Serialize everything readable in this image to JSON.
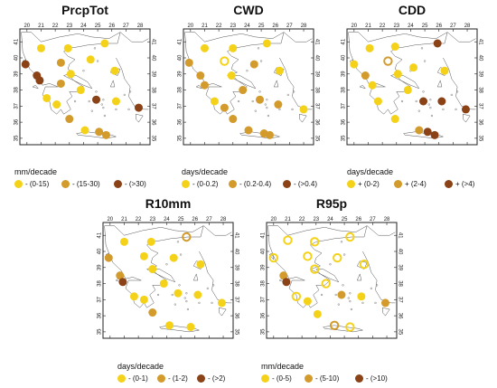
{
  "colors": {
    "yellow": "#f5d21a",
    "orange": "#d39a2c",
    "brown": "#8a4216",
    "frame": "#222222",
    "coast": "#555555"
  },
  "lon_ticks": [
    "20",
    "21",
    "22",
    "23",
    "24",
    "25",
    "26",
    "27",
    "28"
  ],
  "lat_ticks": [
    "35",
    "36",
    "37",
    "38",
    "39",
    "40",
    "41"
  ],
  "panels": [
    {
      "title": "PrcpTot",
      "legend_title": "mm/decade",
      "legend": [
        {
          "label": "- (0-15)",
          "color": "yellow"
        },
        {
          "label": "- (15-30)",
          "color": "orange"
        },
        {
          "label": "- (>30)",
          "color": "brown"
        }
      ],
      "stations": [
        {
          "lon": 21.0,
          "lat": 40.6,
          "color": "yellow",
          "style": "filled"
        },
        {
          "lon": 22.9,
          "lat": 40.6,
          "color": "yellow",
          "style": "filled"
        },
        {
          "lon": 25.5,
          "lat": 40.9,
          "color": "yellow",
          "style": "filled"
        },
        {
          "lon": 19.9,
          "lat": 39.6,
          "color": "brown",
          "style": "filled"
        },
        {
          "lon": 22.4,
          "lat": 39.7,
          "color": "orange",
          "style": "filled"
        },
        {
          "lon": 24.5,
          "lat": 39.9,
          "color": "yellow",
          "style": "filled"
        },
        {
          "lon": 26.2,
          "lat": 39.2,
          "color": "yellow",
          "style": "filled"
        },
        {
          "lon": 20.7,
          "lat": 38.9,
          "color": "brown",
          "style": "filled"
        },
        {
          "lon": 23.1,
          "lat": 39.0,
          "color": "yellow",
          "style": "filled"
        },
        {
          "lon": 20.9,
          "lat": 38.6,
          "color": "brown",
          "style": "filled"
        },
        {
          "lon": 22.4,
          "lat": 38.4,
          "color": "orange",
          "style": "filled"
        },
        {
          "lon": 23.8,
          "lat": 38.0,
          "color": "yellow",
          "style": "filled"
        },
        {
          "lon": 21.4,
          "lat": 37.5,
          "color": "yellow",
          "style": "filled"
        },
        {
          "lon": 22.1,
          "lat": 37.1,
          "color": "yellow",
          "style": "filled"
        },
        {
          "lon": 24.9,
          "lat": 37.4,
          "color": "brown",
          "style": "filled"
        },
        {
          "lon": 26.3,
          "lat": 37.3,
          "color": "yellow",
          "style": "filled"
        },
        {
          "lon": 27.9,
          "lat": 36.9,
          "color": "brown",
          "style": "filled"
        },
        {
          "lon": 23.0,
          "lat": 36.2,
          "color": "orange",
          "style": "filled"
        },
        {
          "lon": 24.1,
          "lat": 35.5,
          "color": "yellow",
          "style": "filled"
        },
        {
          "lon": 25.1,
          "lat": 35.4,
          "color": "orange",
          "style": "filled"
        },
        {
          "lon": 25.6,
          "lat": 35.2,
          "color": "orange",
          "style": "filled"
        }
      ]
    },
    {
      "title": "CWD",
      "legend_title": "days/decade",
      "legend": [
        {
          "label": "- (0-0.2)",
          "color": "yellow"
        },
        {
          "label": "- (0.2-0.4)",
          "color": "orange"
        },
        {
          "label": "- (>0.4)",
          "color": "brown"
        }
      ],
      "stations": [
        {
          "lon": 21.0,
          "lat": 40.6,
          "color": "yellow",
          "style": "filled"
        },
        {
          "lon": 23.0,
          "lat": 40.6,
          "color": "yellow",
          "style": "filled"
        },
        {
          "lon": 25.4,
          "lat": 40.9,
          "color": "yellow",
          "style": "filled"
        },
        {
          "lon": 19.9,
          "lat": 39.7,
          "color": "orange",
          "style": "filled"
        },
        {
          "lon": 22.4,
          "lat": 39.8,
          "color": "yellow",
          "style": "ring"
        },
        {
          "lon": 24.5,
          "lat": 39.6,
          "color": "orange",
          "style": "filled"
        },
        {
          "lon": 26.3,
          "lat": 39.2,
          "color": "yellow",
          "style": "filled"
        },
        {
          "lon": 20.7,
          "lat": 38.9,
          "color": "orange",
          "style": "filled"
        },
        {
          "lon": 22.9,
          "lat": 38.9,
          "color": "yellow",
          "style": "filled"
        },
        {
          "lon": 21.0,
          "lat": 38.3,
          "color": "orange",
          "style": "filled"
        },
        {
          "lon": 23.7,
          "lat": 38.0,
          "color": "orange",
          "style": "filled"
        },
        {
          "lon": 21.7,
          "lat": 37.3,
          "color": "yellow",
          "style": "filled"
        },
        {
          "lon": 22.4,
          "lat": 36.9,
          "color": "orange",
          "style": "filled"
        },
        {
          "lon": 24.9,
          "lat": 37.4,
          "color": "orange",
          "style": "filled"
        },
        {
          "lon": 26.2,
          "lat": 37.1,
          "color": "orange",
          "style": "filled"
        },
        {
          "lon": 28.0,
          "lat": 36.8,
          "color": "yellow",
          "style": "filled"
        },
        {
          "lon": 23.0,
          "lat": 36.2,
          "color": "orange",
          "style": "filled"
        },
        {
          "lon": 24.1,
          "lat": 35.5,
          "color": "orange",
          "style": "filled"
        },
        {
          "lon": 25.2,
          "lat": 35.3,
          "color": "orange",
          "style": "filled"
        },
        {
          "lon": 25.6,
          "lat": 35.2,
          "color": "orange",
          "style": "filled"
        }
      ]
    },
    {
      "title": "CDD",
      "legend_title": "days/decade",
      "legend": [
        {
          "label": "+ (0-2)",
          "color": "yellow"
        },
        {
          "label": "+ (2-4)",
          "color": "orange"
        },
        {
          "label": "+ (>4)",
          "color": "brown"
        }
      ],
      "stations": [
        {
          "lon": 21.1,
          "lat": 40.6,
          "color": "yellow",
          "style": "filled"
        },
        {
          "lon": 22.9,
          "lat": 40.7,
          "color": "yellow",
          "style": "filled"
        },
        {
          "lon": 25.9,
          "lat": 40.9,
          "color": "brown",
          "style": "filled"
        },
        {
          "lon": 20.0,
          "lat": 39.6,
          "color": "yellow",
          "style": "filled"
        },
        {
          "lon": 22.4,
          "lat": 39.8,
          "color": "orange",
          "style": "ring"
        },
        {
          "lon": 24.2,
          "lat": 39.4,
          "color": "yellow",
          "style": "filled"
        },
        {
          "lon": 26.4,
          "lat": 39.2,
          "color": "yellow",
          "style": "filled"
        },
        {
          "lon": 20.8,
          "lat": 38.9,
          "color": "orange",
          "style": "filled"
        },
        {
          "lon": 23.1,
          "lat": 39.0,
          "color": "yellow",
          "style": "filled"
        },
        {
          "lon": 21.3,
          "lat": 38.3,
          "color": "yellow",
          "style": "filled"
        },
        {
          "lon": 23.8,
          "lat": 38.0,
          "color": "yellow",
          "style": "filled"
        },
        {
          "lon": 21.7,
          "lat": 37.3,
          "color": "yellow",
          "style": "filled"
        },
        {
          "lon": 24.9,
          "lat": 37.3,
          "color": "brown",
          "style": "filled"
        },
        {
          "lon": 26.2,
          "lat": 37.3,
          "color": "brown",
          "style": "filled"
        },
        {
          "lon": 27.9,
          "lat": 36.8,
          "color": "brown",
          "style": "filled"
        },
        {
          "lon": 22.9,
          "lat": 36.2,
          "color": "yellow",
          "style": "filled"
        },
        {
          "lon": 24.6,
          "lat": 35.5,
          "color": "orange",
          "style": "filled"
        },
        {
          "lon": 25.2,
          "lat": 35.4,
          "color": "brown",
          "style": "filled"
        },
        {
          "lon": 25.7,
          "lat": 35.2,
          "color": "brown",
          "style": "filled"
        }
      ]
    },
    {
      "title": "R10mm",
      "legend_title": "days/decade",
      "legend": [
        {
          "label": "- (0-1)",
          "color": "yellow"
        },
        {
          "label": "- (1-2)",
          "color": "orange"
        },
        {
          "label": "- (>2)",
          "color": "brown"
        }
      ],
      "stations": [
        {
          "lon": 21.0,
          "lat": 40.6,
          "color": "yellow",
          "style": "filled"
        },
        {
          "lon": 22.9,
          "lat": 40.6,
          "color": "yellow",
          "style": "filled"
        },
        {
          "lon": 25.4,
          "lat": 40.9,
          "color": "orange",
          "style": "ring"
        },
        {
          "lon": 19.9,
          "lat": 39.6,
          "color": "orange",
          "style": "filled"
        },
        {
          "lon": 22.4,
          "lat": 39.7,
          "color": "yellow",
          "style": "filled"
        },
        {
          "lon": 24.5,
          "lat": 39.6,
          "color": "yellow",
          "style": "filled"
        },
        {
          "lon": 26.4,
          "lat": 39.2,
          "color": "yellow",
          "style": "filled"
        },
        {
          "lon": 20.7,
          "lat": 38.5,
          "color": "orange",
          "style": "filled"
        },
        {
          "lon": 23.0,
          "lat": 38.9,
          "color": "yellow",
          "style": "filled"
        },
        {
          "lon": 20.9,
          "lat": 38.1,
          "color": "brown",
          "style": "filled"
        },
        {
          "lon": 23.8,
          "lat": 38.0,
          "color": "yellow",
          "style": "filled"
        },
        {
          "lon": 21.7,
          "lat": 37.2,
          "color": "yellow",
          "style": "filled"
        },
        {
          "lon": 22.4,
          "lat": 37.0,
          "color": "yellow",
          "style": "filled"
        },
        {
          "lon": 24.8,
          "lat": 37.4,
          "color": "yellow",
          "style": "filled"
        },
        {
          "lon": 26.2,
          "lat": 37.3,
          "color": "yellow",
          "style": "filled"
        },
        {
          "lon": 27.9,
          "lat": 36.8,
          "color": "yellow",
          "style": "filled"
        },
        {
          "lon": 23.0,
          "lat": 36.2,
          "color": "orange",
          "style": "filled"
        },
        {
          "lon": 24.2,
          "lat": 35.4,
          "color": "yellow",
          "style": "filled"
        },
        {
          "lon": 25.7,
          "lat": 35.3,
          "color": "yellow",
          "style": "filled"
        }
      ]
    },
    {
      "title": "R95p",
      "legend_title": "mm/decade",
      "legend": [
        {
          "label": "- (0-5)",
          "color": "yellow"
        },
        {
          "label": "- (5-10)",
          "color": "orange"
        },
        {
          "label": "- (>10)",
          "color": "brown"
        }
      ],
      "stations": [
        {
          "lon": 21.0,
          "lat": 40.7,
          "color": "yellow",
          "style": "ring"
        },
        {
          "lon": 22.9,
          "lat": 40.6,
          "color": "yellow",
          "style": "ring"
        },
        {
          "lon": 25.4,
          "lat": 40.9,
          "color": "yellow",
          "style": "ring"
        },
        {
          "lon": 20.0,
          "lat": 39.6,
          "color": "yellow",
          "style": "ring"
        },
        {
          "lon": 22.4,
          "lat": 39.7,
          "color": "yellow",
          "style": "ring"
        },
        {
          "lon": 24.5,
          "lat": 39.6,
          "color": "yellow",
          "style": "ring"
        },
        {
          "lon": 26.4,
          "lat": 39.2,
          "color": "yellow",
          "style": "ring"
        },
        {
          "lon": 20.7,
          "lat": 38.5,
          "color": "orange",
          "style": "filled"
        },
        {
          "lon": 22.9,
          "lat": 38.9,
          "color": "yellow",
          "style": "ring"
        },
        {
          "lon": 20.9,
          "lat": 38.1,
          "color": "brown",
          "style": "filled"
        },
        {
          "lon": 23.7,
          "lat": 38.0,
          "color": "yellow",
          "style": "ring"
        },
        {
          "lon": 21.6,
          "lat": 37.2,
          "color": "yellow",
          "style": "ring"
        },
        {
          "lon": 22.4,
          "lat": 36.9,
          "color": "yellow",
          "style": "filled"
        },
        {
          "lon": 24.8,
          "lat": 37.3,
          "color": "orange",
          "style": "filled"
        },
        {
          "lon": 26.2,
          "lat": 37.2,
          "color": "yellow",
          "style": "filled"
        },
        {
          "lon": 27.9,
          "lat": 36.8,
          "color": "orange",
          "style": "filled"
        },
        {
          "lon": 23.1,
          "lat": 36.1,
          "color": "yellow",
          "style": "filled"
        },
        {
          "lon": 24.3,
          "lat": 35.4,
          "color": "orange",
          "style": "ring"
        },
        {
          "lon": 25.4,
          "lat": 35.3,
          "color": "yellow",
          "style": "ring"
        }
      ]
    }
  ]
}
